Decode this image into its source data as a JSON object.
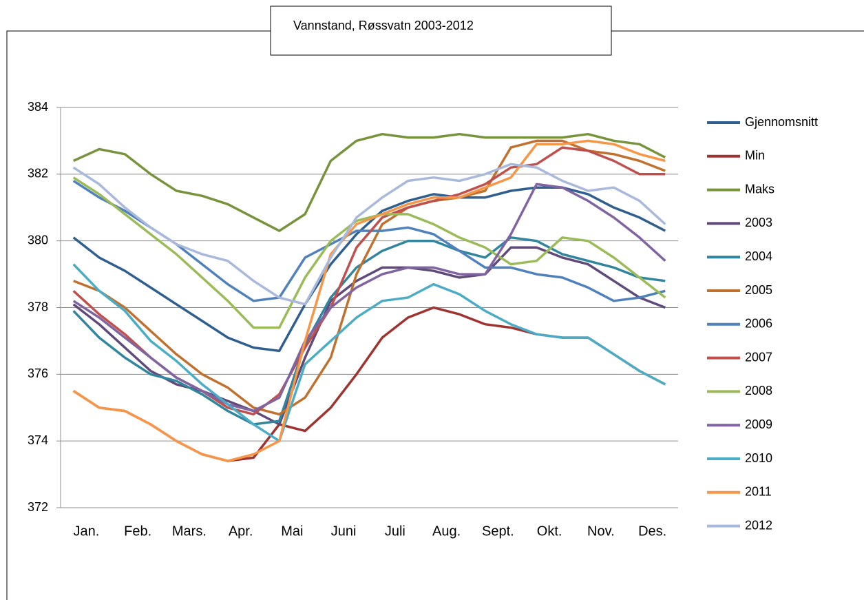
{
  "chart_data": {
    "type": "line",
    "title": "Vannstand, Røssvatn 2003-2012",
    "categories": [
      "Jan.",
      null,
      "Feb.",
      null,
      "Mars.",
      null,
      "Apr.",
      null,
      "Mai",
      null,
      "Juni",
      null,
      "Juli",
      null,
      "Aug.",
      null,
      "Sept.",
      null,
      "Okt.",
      null,
      "Nov.",
      null,
      "Des.",
      null
    ],
    "ylim": [
      372,
      384
    ],
    "yticks": [
      372,
      374,
      376,
      378,
      380,
      382,
      384
    ],
    "grid": true,
    "legend": "right",
    "series": [
      {
        "name": "Gjennomsnitt",
        "color": "#2f5f8f",
        "values": [
          380.1,
          379.5,
          379.1,
          378.6,
          378.1,
          377.6,
          377.1,
          376.8,
          376.7,
          378.1,
          379.3,
          380.2,
          380.9,
          381.2,
          381.4,
          381.3,
          381.3,
          381.5,
          381.6,
          381.6,
          381.4,
          381.0,
          380.7,
          380.3
        ]
      },
      {
        "name": "Min",
        "color": "#9e3330",
        "values": [
          375.5,
          375.0,
          374.9,
          374.5,
          374.0,
          373.6,
          373.4,
          373.5,
          374.5,
          374.3,
          375.0,
          376.0,
          377.1,
          377.7,
          378.0,
          377.8,
          377.5,
          377.4,
          377.2,
          377.1,
          377.1,
          376.6,
          376.1,
          375.7
        ]
      },
      {
        "name": "Maks",
        "color": "#77933c",
        "values": [
          382.4,
          382.75,
          382.6,
          382.0,
          381.5,
          381.35,
          381.1,
          380.7,
          380.3,
          380.8,
          382.4,
          383.0,
          383.2,
          383.1,
          383.1,
          383.2,
          383.1,
          383.1,
          383.1,
          383.1,
          383.2,
          383.0,
          382.9,
          382.5
        ]
      },
      {
        "name": "2003",
        "color": "#604a7b",
        "values": [
          378.1,
          377.5,
          376.8,
          376.1,
          375.7,
          375.5,
          375.2,
          374.9,
          374.5,
          376.5,
          378.2,
          378.8,
          379.2,
          379.2,
          379.1,
          378.9,
          379.0,
          379.8,
          379.8,
          379.5,
          379.3,
          378.8,
          378.3,
          378.0
        ]
      },
      {
        "name": "2004",
        "color": "#31859c",
        "values": [
          377.9,
          377.1,
          376.5,
          376.0,
          375.8,
          375.4,
          374.9,
          374.5,
          374.6,
          376.9,
          378.3,
          379.2,
          379.7,
          380.0,
          380.0,
          379.7,
          379.5,
          380.1,
          380.0,
          379.6,
          379.4,
          379.2,
          378.9,
          378.8
        ]
      },
      {
        "name": "2005",
        "color": "#c0712f",
        "values": [
          378.8,
          378.5,
          378.0,
          377.3,
          376.6,
          376.0,
          375.6,
          375.0,
          374.8,
          375.3,
          376.5,
          379.0,
          380.5,
          381.0,
          381.2,
          381.3,
          381.5,
          382.8,
          383.0,
          383.0,
          382.7,
          382.6,
          382.4,
          382.1
        ]
      },
      {
        "name": "2006",
        "color": "#4f81bd",
        "values": [
          381.8,
          381.3,
          380.9,
          380.4,
          379.9,
          379.3,
          378.7,
          378.2,
          378.3,
          379.5,
          379.9,
          380.3,
          380.3,
          380.4,
          380.2,
          379.7,
          379.2,
          379.2,
          379.0,
          378.9,
          378.6,
          378.2,
          378.3,
          378.5
        ]
      },
      {
        "name": "2007",
        "color": "#c0504d",
        "values": [
          378.5,
          377.8,
          377.2,
          376.5,
          375.9,
          375.5,
          375.0,
          374.8,
          375.4,
          376.8,
          378.0,
          379.8,
          380.7,
          381.0,
          381.2,
          381.4,
          381.7,
          382.2,
          382.3,
          382.8,
          382.7,
          382.4,
          382.0,
          382.0
        ]
      },
      {
        "name": "2008",
        "color": "#9bbb59",
        "values": [
          381.9,
          381.4,
          380.8,
          380.2,
          379.6,
          378.9,
          378.2,
          377.4,
          377.4,
          378.9,
          380.0,
          380.6,
          380.8,
          380.8,
          380.5,
          380.1,
          379.8,
          379.3,
          379.4,
          380.1,
          380.0,
          379.5,
          378.9,
          378.3
        ]
      },
      {
        "name": "2009",
        "color": "#8064a2",
        "values": [
          378.2,
          377.7,
          377.1,
          376.5,
          375.9,
          375.5,
          375.1,
          374.9,
          375.3,
          377.0,
          378.0,
          378.6,
          379.0,
          379.2,
          379.2,
          379.0,
          379.0,
          380.2,
          381.7,
          381.6,
          381.2,
          380.7,
          380.1,
          379.4
        ]
      },
      {
        "name": "2010",
        "color": "#4bacc6",
        "values": [
          379.3,
          378.5,
          377.9,
          377.0,
          376.4,
          375.7,
          375.1,
          374.5,
          374.0,
          376.3,
          377.0,
          377.7,
          378.2,
          378.3,
          378.7,
          378.4,
          377.9,
          377.5,
          377.2,
          377.1,
          377.1,
          376.6,
          376.1,
          375.7
        ]
      },
      {
        "name": "2011",
        "color": "#f79646",
        "values": [
          375.5,
          375.0,
          374.9,
          374.5,
          374.0,
          373.6,
          373.4,
          373.6,
          374.0,
          377.0,
          379.6,
          380.5,
          380.8,
          381.1,
          381.3,
          381.3,
          381.6,
          381.9,
          382.9,
          382.9,
          383.0,
          382.9,
          382.6,
          382.4
        ]
      },
      {
        "name": "2012",
        "color": "#a9b9dc",
        "values": [
          382.2,
          381.7,
          381.0,
          380.4,
          379.9,
          379.6,
          379.4,
          378.8,
          378.3,
          378.1,
          379.5,
          380.7,
          381.3,
          381.8,
          381.9,
          381.8,
          382.0,
          382.3,
          382.2,
          381.8,
          381.5,
          381.6,
          381.2,
          380.5
        ]
      }
    ]
  }
}
